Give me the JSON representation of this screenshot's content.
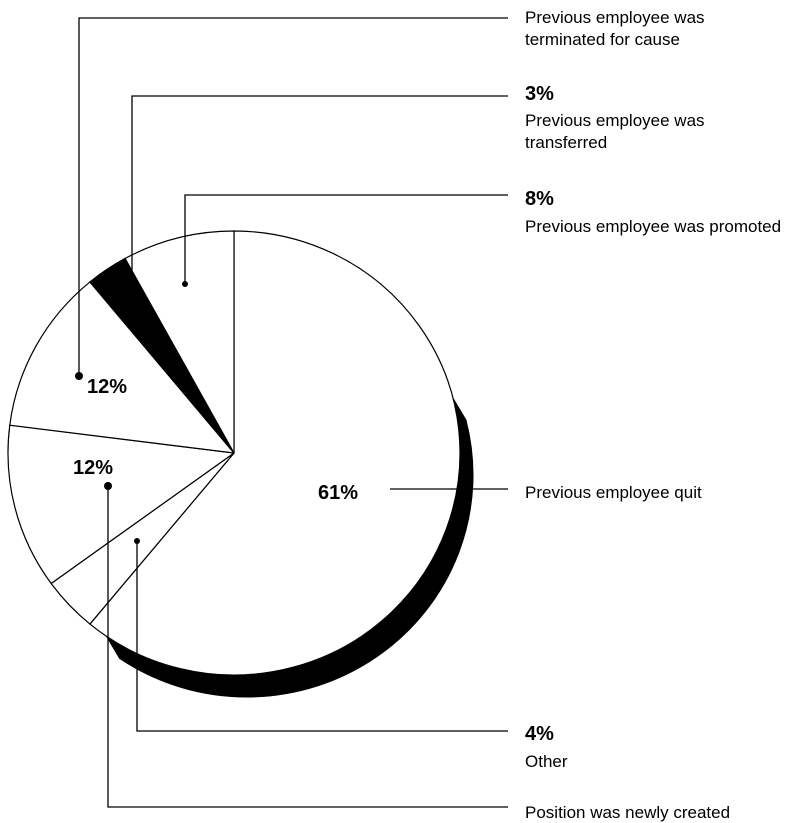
{
  "chart_data": {
    "type": "pie",
    "slices": [
      {
        "label": "Previous employee quit",
        "value": 61,
        "display": "61%"
      },
      {
        "label": "Other",
        "value": 4,
        "display": "4%"
      },
      {
        "label": "Position was newly created",
        "value": 12,
        "display": "12%"
      },
      {
        "label": "Previous employee was terminated for cause",
        "value": 12,
        "display": "12%"
      },
      {
        "label": "Previous employee was transferred",
        "value": 3,
        "display": "3%"
      },
      {
        "label": "Previous employee was promoted",
        "value": 8,
        "display": "8%"
      }
    ]
  }
}
